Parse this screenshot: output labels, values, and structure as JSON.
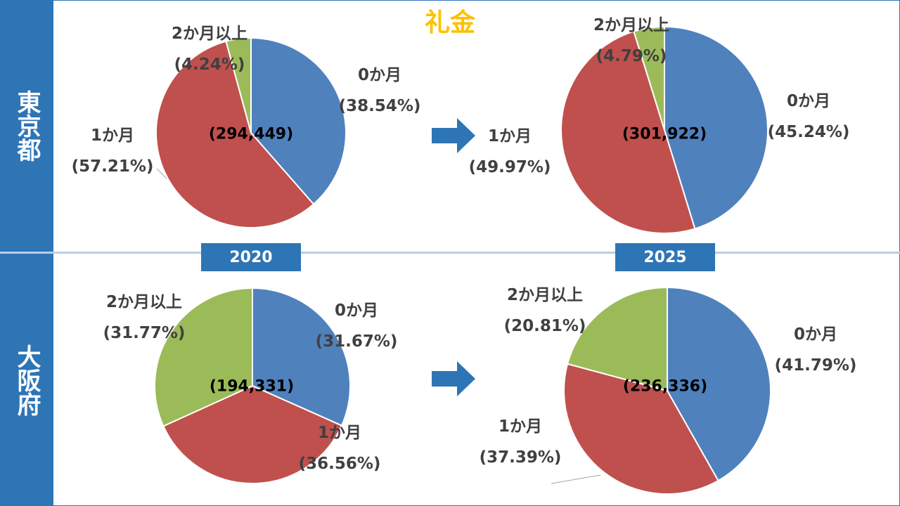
{
  "title": "礼金",
  "regions": [
    {
      "name": "東京都"
    },
    {
      "name": "大阪府"
    }
  ],
  "years": [
    "2020",
    "2025"
  ],
  "colors": {
    "zero_months": "#4f81bd",
    "one_month": "#c0504d",
    "two_plus_months": "#9bbb59",
    "accent": "#2e75b6",
    "title": "#ffc000"
  },
  "chart_data": [
    {
      "type": "pie",
      "region": "東京都",
      "year": "2020",
      "total": "(294,449)",
      "slices": [
        {
          "label": "0か月",
          "pct_label": "(38.54%)",
          "value": 38.54
        },
        {
          "label": "1か月",
          "pct_label": "(57.21%)",
          "value": 57.21
        },
        {
          "label": "2か月以上",
          "pct_label": "(4.24%)",
          "value": 4.24
        }
      ]
    },
    {
      "type": "pie",
      "region": "東京都",
      "year": "2025",
      "total": "(301,922)",
      "slices": [
        {
          "label": "0か月",
          "pct_label": "(45.24%)",
          "value": 45.24
        },
        {
          "label": "1か月",
          "pct_label": "(49.97%)",
          "value": 49.97
        },
        {
          "label": "2か月以上",
          "pct_label": "(4.79%)",
          "value": 4.79
        }
      ]
    },
    {
      "type": "pie",
      "region": "大阪府",
      "year": "2020",
      "total": "(194,331)",
      "slices": [
        {
          "label": "0か月",
          "pct_label": "(31.67%)",
          "value": 31.67
        },
        {
          "label": "1か月",
          "pct_label": "(36.56%)",
          "value": 36.56
        },
        {
          "label": "2か月以上",
          "pct_label": "(31.77%)",
          "value": 31.77
        }
      ]
    },
    {
      "type": "pie",
      "region": "大阪府",
      "year": "2025",
      "total": "(236,336)",
      "slices": [
        {
          "label": "0か月",
          "pct_label": "(41.79%)",
          "value": 41.79
        },
        {
          "label": "1か月",
          "pct_label": "(37.39%)",
          "value": 37.39
        },
        {
          "label": "2か月以上",
          "pct_label": "(20.81%)",
          "value": 20.81
        }
      ]
    }
  ]
}
